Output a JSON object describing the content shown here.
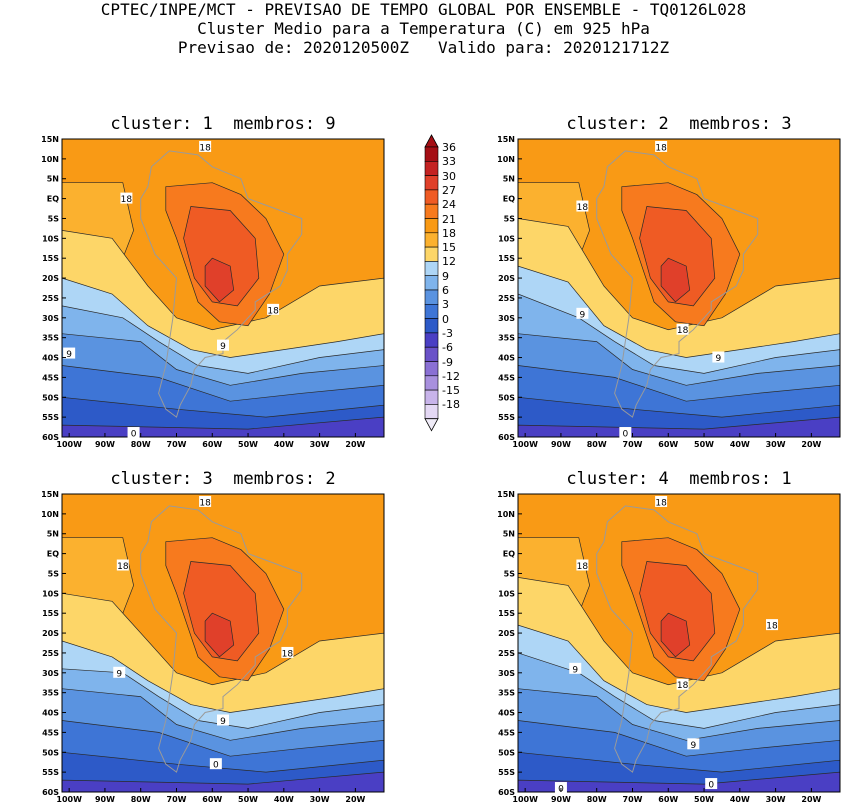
{
  "header": {
    "line1": "CPTEC/INPE/MCT - PREVISAO DE TEMPO GLOBAL POR ENSEMBLE - TQ0126L028",
    "line2": "Cluster Medio para a Temperatura (C) em 925 hPa",
    "line3": "Previsao de: 2020120500Z   Valido para: 2020121712Z"
  },
  "panels": [
    {
      "title": "cluster: 1  membros: 9",
      "contour_labels": [
        "18",
        "18",
        "18",
        "9",
        "9",
        "0"
      ]
    },
    {
      "title": "cluster: 2  membros: 3",
      "contour_labels": [
        "18",
        "18",
        "9",
        "18",
        "9",
        "0"
      ]
    },
    {
      "title": "cluster: 3  membros: 2",
      "contour_labels": [
        "18",
        "18",
        "9",
        "18",
        "9",
        "0"
      ]
    },
    {
      "title": "cluster: 4  membros: 1",
      "contour_labels": [
        "18",
        "18",
        "18",
        "9",
        "18",
        "9",
        "0",
        "0"
      ]
    }
  ],
  "lat_labels": [
    "15N",
    "10N",
    "5N",
    "EQ",
    "5S",
    "10S",
    "15S",
    "20S",
    "25S",
    "30S",
    "35S",
    "40S",
    "45S",
    "50S",
    "55S",
    "60S"
  ],
  "lon_labels": [
    "100W",
    "90W",
    "80W",
    "70W",
    "60W",
    "50W",
    "40W",
    "30W",
    "20W"
  ],
  "colorbar": {
    "levels": [
      "36",
      "33",
      "30",
      "27",
      "24",
      "21",
      "18",
      "15",
      "12",
      "9",
      "6",
      "3",
      "0",
      "-3",
      "-6",
      "-9",
      "-12",
      "-15",
      "-18"
    ],
    "colors": [
      "#a50f15",
      "#c42222",
      "#e0402a",
      "#ef5b24",
      "#f77a1e",
      "#f99a15",
      "#fbb12f",
      "#fdd668",
      "#aed6f6",
      "#7fb4ec",
      "#5a93e0",
      "#3e75d6",
      "#2d5ac8",
      "#4a3fc4",
      "#6a52c8",
      "#8a70d4",
      "#a890de",
      "#c8b4ea",
      "#e4d8f4"
    ]
  }
}
